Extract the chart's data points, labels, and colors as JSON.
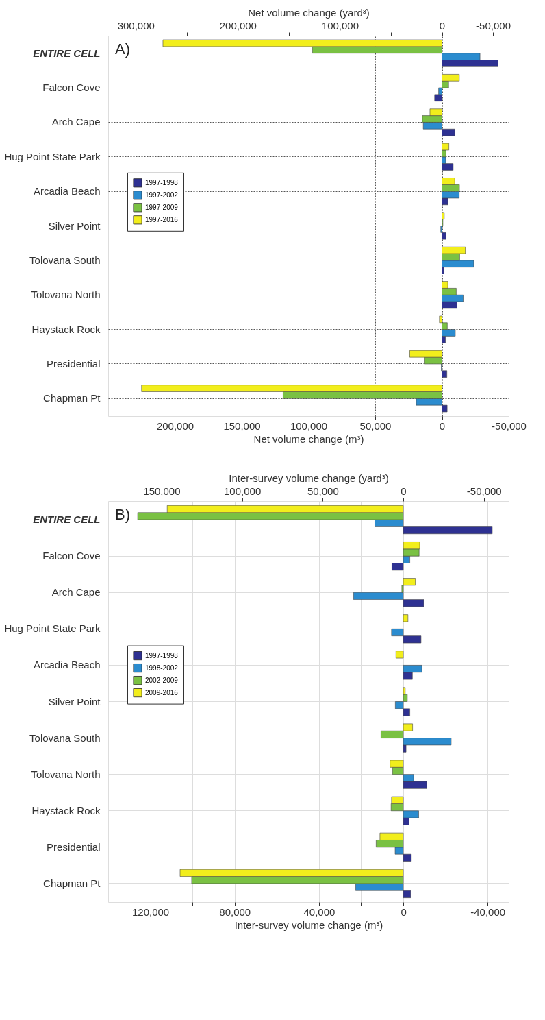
{
  "chart_data": [
    {
      "type": "bar",
      "orientation": "horizontal",
      "xlabel": "Net volume change (m³)",
      "x2label": "Net volume change (yard³)",
      "annotations": [
        "A)"
      ],
      "categories": [
        "ENTIRE CELL",
        "Falcon Cove",
        "Arch Cape",
        "Hug Point State Park",
        "Arcadia Beach",
        "Silver Point",
        "Tolovana South",
        "Tolovana North",
        "Haystack Rock",
        "Presidential",
        "Chapman Pt"
      ],
      "series": [
        {
          "name": "1997-1998",
          "color": "#2e3192",
          "values": [
            -42000,
            5500,
            -9600,
            -8400,
            -4400,
            -3000,
            -1400,
            -11200,
            -2600,
            -3700,
            -3900
          ]
        },
        {
          "name": "1997-2002",
          "color": "#2b8ccf",
          "values": [
            -28500,
            2500,
            14000,
            -2800,
            -12900,
            900,
            -23800,
            -15900,
            -10000,
            500,
            19200
          ]
        },
        {
          "name": "1997-2009",
          "color": "#7ac143",
          "values": [
            97000,
            -5000,
            14700,
            -3000,
            -13100,
            -700,
            -13300,
            -10700,
            -4000,
            12900,
            119000
          ]
        },
        {
          "name": "1997-2016",
          "color": "#f2ee1c",
          "values": [
            209000,
            -13000,
            9000,
            -5200,
            -9600,
            -1700,
            -17500,
            -4400,
            1900,
            24100,
            225000
          ]
        }
      ],
      "xlim": [
        250000,
        -50000
      ],
      "xticks": [
        {
          "value": 200000,
          "label": "200,000"
        },
        {
          "value": 150000,
          "label": "150,000"
        },
        {
          "value": 100000,
          "label": "100,000"
        },
        {
          "value": 50000,
          "label": "50,000"
        },
        0,
        {
          "value": -50000,
          "label": "-50,000"
        }
      ],
      "x2lim": [
        327000,
        -65400
      ],
      "x2ticks": [
        {
          "value": 300000,
          "label": "300,000"
        },
        {
          "value": 250000,
          "label": null
        },
        {
          "value": 200000,
          "label": "200,000"
        },
        {
          "value": 150000,
          "label": null
        },
        {
          "value": 100000,
          "label": "100,000"
        },
        {
          "value": 50000,
          "label": null
        },
        0,
        {
          "value": -50000,
          "label": "-50,000"
        }
      ],
      "grid": true,
      "legend": "left"
    },
    {
      "type": "bar",
      "orientation": "horizontal",
      "xlabel": "Inter-survey volume change (m³)",
      "x2label": "Inter-survey volume change (yard³)",
      "annotations": [
        "B)"
      ],
      "categories": [
        "ENTIRE CELL",
        "Falcon Cove",
        "Arch Cape",
        "Hug Point State Park",
        "Arcadia Beach",
        "Silver Point",
        "Tolovana South",
        "Tolovana North",
        "Haystack Rock",
        "Presidential",
        "Chapman Pt"
      ],
      "series": [
        {
          "name": "1997-1998",
          "color": "#2e3192",
          "values": [
            -42200,
            5400,
            -9700,
            -8400,
            -4300,
            -3100,
            -1300,
            -11100,
            -2700,
            -3800,
            -3500
          ]
        },
        {
          "name": "1998-2002",
          "color": "#2b8ccf",
          "values": [
            13500,
            -3100,
            23600,
            5600,
            -8800,
            3800,
            -22700,
            -4900,
            -7300,
            3900,
            22600
          ]
        },
        {
          "name": "2002-2009",
          "color": "#7ac143",
          "values": [
            126000,
            -7500,
            700,
            null,
            null,
            -1900,
            10600,
            5100,
            5800,
            12900,
            100400
          ]
        },
        {
          "name": "2009-2016",
          "color": "#f2ee1c",
          "values": [
            112000,
            -7800,
            -5700,
            -2200,
            3500,
            -900,
            -4400,
            6300,
            5600,
            11100,
            105900
          ]
        }
      ],
      "xlim": [
        140000,
        -50000
      ],
      "xticks": [
        {
          "value": 120000,
          "label": "120,000"
        },
        {
          "value": 100000,
          "label": null
        },
        {
          "value": 80000,
          "label": "80,000"
        },
        {
          "value": 60000,
          "label": null
        },
        {
          "value": 40000,
          "label": "40,000"
        },
        {
          "value": 20000,
          "label": null
        },
        0,
        {
          "value": -20000,
          "label": null
        },
        {
          "value": -40000,
          "label": "-40,000"
        }
      ],
      "x2lim": [
        183100,
        -65400
      ],
      "x2ticks": [
        {
          "value": 150000,
          "label": "150,000"
        },
        {
          "value": 100000,
          "label": "100,000"
        },
        {
          "value": 50000,
          "label": "50,000"
        },
        0,
        {
          "value": -50000,
          "label": "-50,000"
        }
      ],
      "grid": true,
      "legend": "left"
    }
  ]
}
